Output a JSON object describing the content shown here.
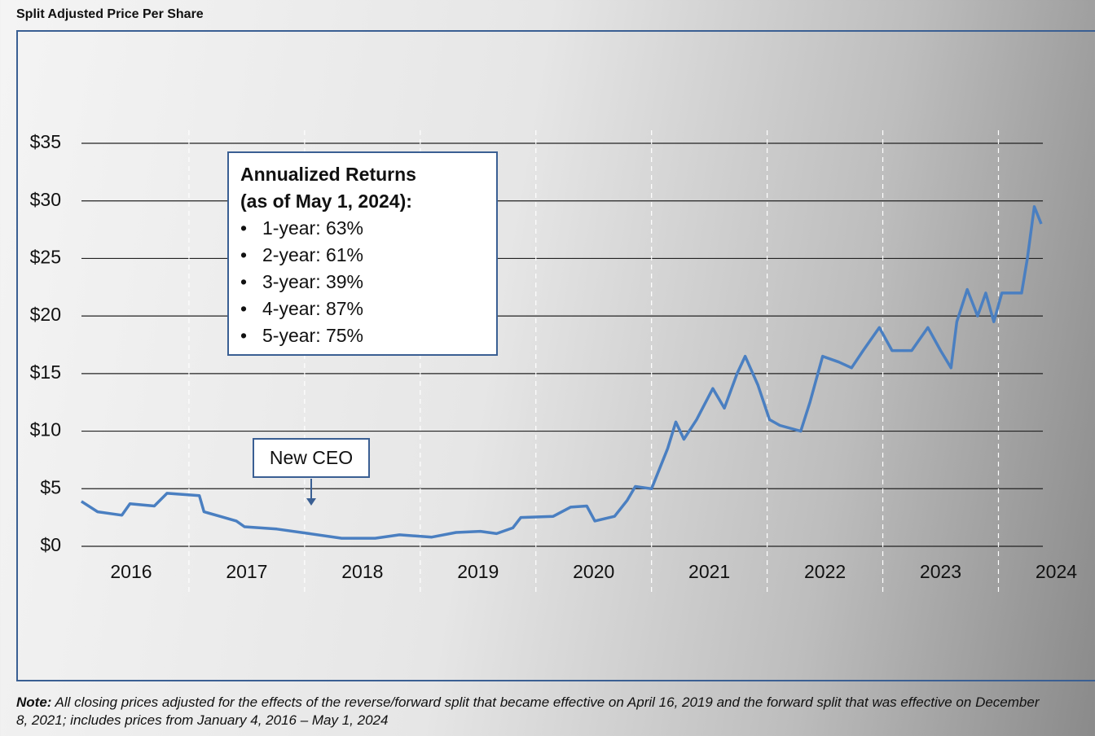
{
  "chart_data": {
    "type": "line",
    "title": "Split Adjusted Price Per Share",
    "x": [
      2016.07,
      2016.21,
      2016.42,
      2016.49,
      2016.7,
      2016.81,
      2017.09,
      2017.13,
      2017.41,
      2017.48,
      2017.76,
      2018.04,
      2018.32,
      2018.61,
      2018.82,
      2019.1,
      2019.31,
      2019.52,
      2019.66,
      2019.8,
      2019.87,
      2020.15,
      2020.3,
      2020.44,
      2020.51,
      2020.68,
      2020.79,
      2020.86,
      2021.0,
      2021.14,
      2021.21,
      2021.28,
      2021.39,
      2021.53,
      2021.63,
      2021.74,
      2021.81,
      2021.92,
      2022.02,
      2022.11,
      2022.29,
      2022.37,
      2022.48,
      2022.62,
      2022.73,
      2022.83,
      2022.97,
      2023.08,
      2023.25,
      2023.39,
      2023.5,
      2023.59,
      2023.64,
      2023.73,
      2023.82,
      2023.89,
      2023.96,
      2024.03,
      2024.2,
      2024.25,
      2024.31,
      2024.37
    ],
    "series": [
      {
        "color": "#4a7fc1",
        "values": [
          3.9,
          3.0,
          2.7,
          3.7,
          3.5,
          4.6,
          4.4,
          3.0,
          2.2,
          1.7,
          1.5,
          1.1,
          0.7,
          0.7,
          1.0,
          0.8,
          1.2,
          1.3,
          1.1,
          1.6,
          2.5,
          2.6,
          3.4,
          3.5,
          2.2,
          2.6,
          4.0,
          5.2,
          5.0,
          8.5,
          10.8,
          9.3,
          11.0,
          13.7,
          12.0,
          15.0,
          16.5,
          14.0,
          11.0,
          10.5,
          10.0,
          12.5,
          16.5,
          16.0,
          15.5,
          17.0,
          19.0,
          17.0,
          17.0,
          19.0,
          17.0,
          15.5,
          19.5,
          22.3,
          20.0,
          22.0,
          19.5,
          22.0,
          22.0,
          25.0,
          29.5,
          28.0
        ]
      }
    ],
    "xlim": [
      2016,
      2024.37
    ],
    "xticks": [
      2016,
      2017,
      2018,
      2019,
      2020,
      2021,
      2022,
      2023,
      2024
    ],
    "ylim": [
      0,
      35
    ],
    "yticks": [
      {
        "value": 0,
        "label": "$0"
      },
      {
        "value": 5,
        "label": "$5"
      },
      {
        "value": 10,
        "label": "$10"
      },
      {
        "value": 15,
        "label": "$15"
      },
      {
        "value": 20,
        "label": "$20"
      },
      {
        "value": 25,
        "label": "$25"
      },
      {
        "value": 30,
        "label": "$30"
      },
      {
        "value": 35,
        "label": "$35"
      }
    ],
    "grid": true,
    "returns_box": {
      "title": [
        "Annualized Returns",
        "(as of May 1, 2024):"
      ],
      "items": [
        "1-year:  63%",
        "2-year:  61%",
        "3-year:  39%",
        "4-year:  87%",
        "5-year:  75%"
      ]
    },
    "annotation": "New CEO",
    "note_label": "Note:",
    "note": "All closing prices adjusted for the effects of the reverse/forward split that became effective on April 16, 2019 and the forward split that was effective on December 8, 2021; includes prices from January 4, 2016 – May 1, 2024"
  }
}
